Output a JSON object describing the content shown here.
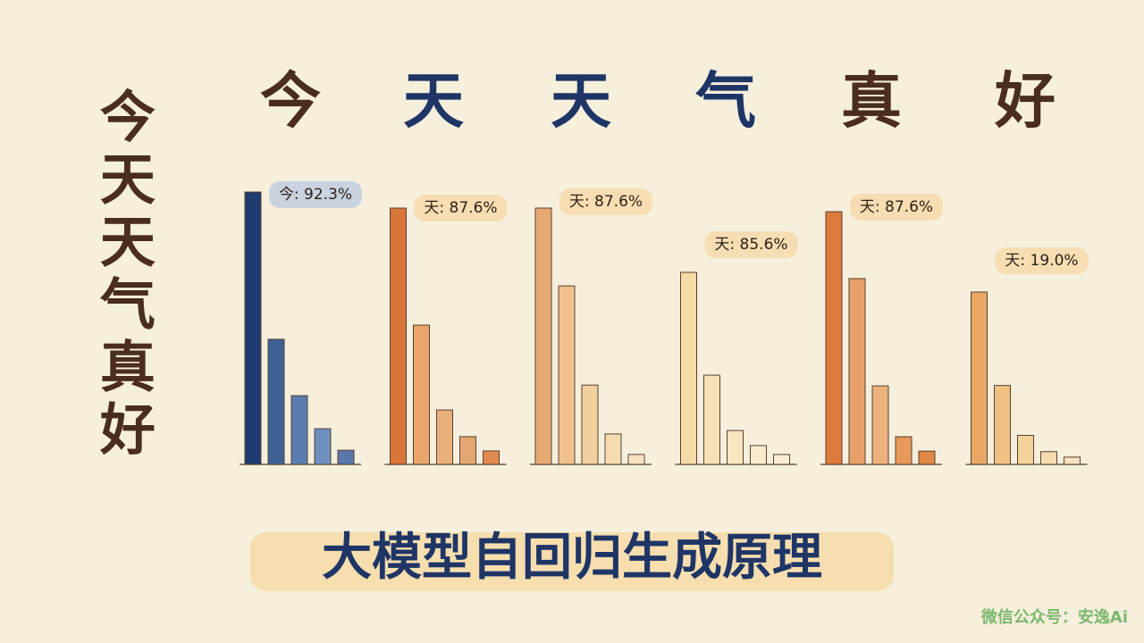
{
  "title": "今天天气真好",
  "tokens": [
    {
      "text": "今",
      "color": "#4a2c20"
    },
    {
      "text": "天",
      "color": "#1e3566"
    },
    {
      "text": "天",
      "color": "#1e3566"
    },
    {
      "text": "气",
      "color": "#1e3566"
    },
    {
      "text": "真",
      "color": "#4a2c20"
    },
    {
      "text": "好",
      "color": "#4a2c20"
    }
  ],
  "chart_data": [
    {
      "type": "bar",
      "values": [
        92.3,
        42.4,
        23.3,
        12.1,
        4.8
      ],
      "value_labels": [
        "今: 92.3%",
        null,
        null,
        null,
        null
      ],
      "label_color": "#c9d3df",
      "colors": [
        "#1f3b70",
        "#3e6097",
        "#5a7db0",
        "#6e8fc0",
        "#5878ad"
      ]
    },
    {
      "type": "bar",
      "values": [
        87.6,
        47.6,
        18.6,
        9.5,
        4.6
      ],
      "value_labels": [
        "天: 87.6%",
        null,
        null,
        null,
        null
      ],
      "label_color": "#f6ddb2",
      "colors": [
        "#d9763a",
        "#e9a56c",
        "#e8b07a",
        "#e3a772",
        "#e08a50"
      ]
    },
    {
      "type": "bar",
      "values": [
        87.6,
        61.0,
        27.1,
        10.4,
        3.4
      ],
      "value_labels": [
        "天: 87.6%",
        null,
        null,
        null,
        null
      ],
      "label_color": "#f6ddb2",
      "colors": [
        "#e8aa73",
        "#efc28f",
        "#f2cf9e",
        "#f4dbb0",
        "#f5e2c0"
      ]
    },
    {
      "type": "bar",
      "values": [
        85.6,
        39.8,
        15.1,
        8.4,
        4.4
      ],
      "value_labels": [
        "天: 85.6%",
        null,
        null,
        null,
        null
      ],
      "label_color": "#f6ddb2",
      "colors": [
        "#f5dba6",
        "#f6e2b8",
        "#f7e6c0",
        "#f8eacb",
        "#f9eed5"
      ]
    },
    {
      "type": "bar",
      "values": [
        87.6,
        64.4,
        27.2,
        9.6,
        4.6
      ],
      "value_labels": [
        "天: 87.6%",
        null,
        null,
        null,
        null
      ],
      "label_color": "#f6ddb2",
      "colors": [
        "#dc7a3c",
        "#e7a068",
        "#ebb27c",
        "#e6995a",
        "#e08848"
      ]
    },
    {
      "type": "bar",
      "values": [
        19.0,
        8.7,
        3.2,
        1.4,
        0.8
      ],
      "value_labels": [
        "天: 19.0%",
        null,
        null,
        null,
        null
      ],
      "label_color": "#f6ddb2",
      "colors": [
        "#e8a765",
        "#efc182",
        "#f3d29c",
        "#f5dcaf",
        "#f6e2bd"
      ]
    }
  ],
  "subtitle": "大模型自回归生成原理",
  "watermark": "微信公众号：安逸Ai"
}
